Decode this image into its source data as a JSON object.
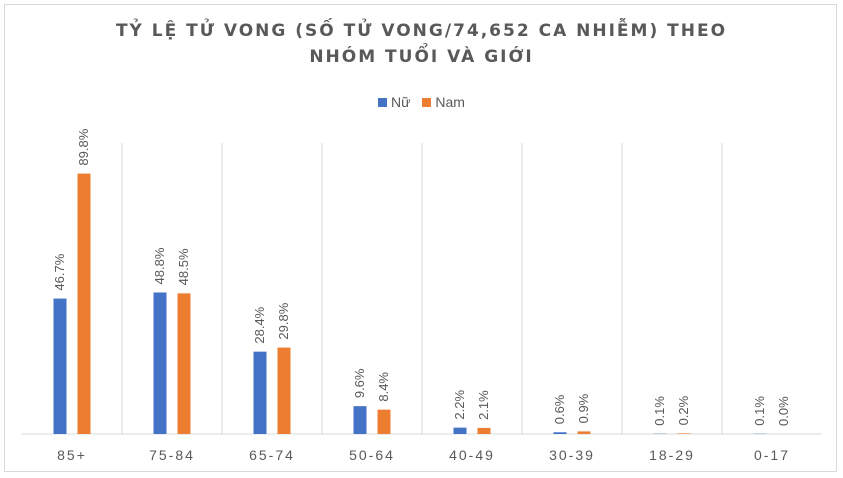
{
  "chart_data": {
    "type": "bar",
    "title_lines": [
      "TỶ LỆ TỬ VONG (SỐ TỬ VONG/74,652 CA NHIỄM) THEO",
      "NHÓM TUỔI VÀ GIỚI"
    ],
    "categories": [
      "85+",
      "75-84",
      "65-74",
      "50-64",
      "40-49",
      "30-39",
      "18-29",
      "0-17"
    ],
    "series": [
      {
        "name": "Nữ",
        "color": "#4472c4",
        "values": [
          46.7,
          48.8,
          28.4,
          9.6,
          2.2,
          0.6,
          0.1,
          0.1
        ],
        "labels": [
          "46.7%",
          "48.8%",
          "28.4%",
          "9.6%",
          "2.2%",
          "0.6%",
          "0.1%",
          "0.1%"
        ]
      },
      {
        "name": "Nam",
        "color": "#ed7d31",
        "values": [
          89.8,
          48.5,
          29.8,
          8.4,
          2.1,
          0.9,
          0.2,
          0.0
        ],
        "labels": [
          "89.8%",
          "48.5%",
          "29.8%",
          "8.4%",
          "2.1%",
          "0.9%",
          "0.2%",
          "0.0%"
        ]
      }
    ],
    "ylim": [
      0,
      100
    ],
    "grid": "vertical-separators",
    "legend": "top-center",
    "colors": {
      "axis": "#d9d9d9",
      "text": "#595959"
    }
  }
}
